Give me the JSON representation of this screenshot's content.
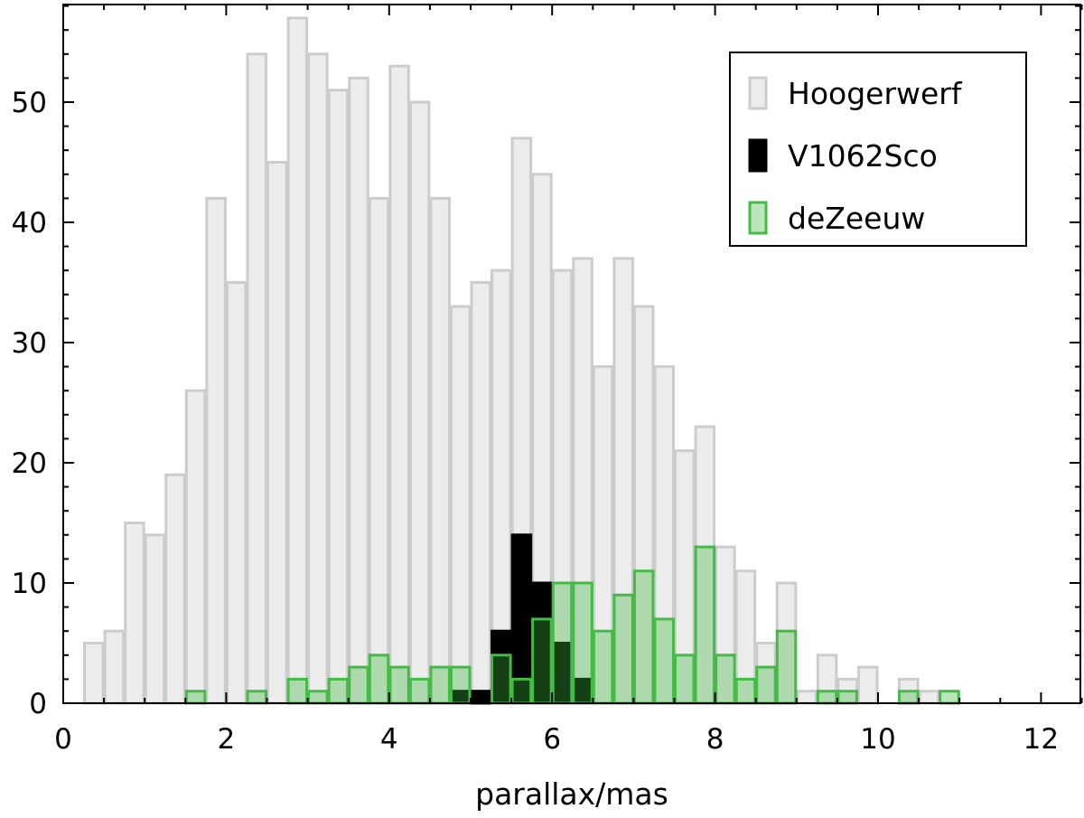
{
  "chart_data": {
    "type": "bar",
    "title": "",
    "xlabel": "parallax/mas",
    "ylabel": "",
    "xlim": [
      0,
      12.5
    ],
    "ylim": [
      0,
      58
    ],
    "bin_width": 0.25,
    "xticks": [
      0,
      2,
      4,
      6,
      8,
      10,
      12
    ],
    "yticks": [
      0,
      10,
      20,
      30,
      40,
      50
    ],
    "grid": false,
    "legend_position": "top-right",
    "series": [
      {
        "name": "Hoogerwerf",
        "fill": "#ececec",
        "stroke": "#cccccc",
        "bins": [
          [
            0.25,
            5
          ],
          [
            0.5,
            6
          ],
          [
            0.75,
            15
          ],
          [
            1.0,
            14
          ],
          [
            1.25,
            19
          ],
          [
            1.5,
            26
          ],
          [
            1.75,
            42
          ],
          [
            2.0,
            35
          ],
          [
            2.25,
            54
          ],
          [
            2.5,
            45
          ],
          [
            2.75,
            57
          ],
          [
            3.0,
            54
          ],
          [
            3.25,
            51
          ],
          [
            3.5,
            52
          ],
          [
            3.75,
            42
          ],
          [
            4.0,
            53
          ],
          [
            4.25,
            50
          ],
          [
            4.5,
            42
          ],
          [
            4.75,
            33
          ],
          [
            5.0,
            35
          ],
          [
            5.25,
            36
          ],
          [
            5.5,
            47
          ],
          [
            5.75,
            44
          ],
          [
            6.0,
            36
          ],
          [
            6.25,
            37
          ],
          [
            6.5,
            28
          ],
          [
            6.75,
            37
          ],
          [
            7.0,
            33
          ],
          [
            7.25,
            28
          ],
          [
            7.5,
            21
          ],
          [
            7.75,
            23
          ],
          [
            8.0,
            13
          ],
          [
            8.25,
            11
          ],
          [
            8.5,
            5
          ],
          [
            8.75,
            10
          ],
          [
            9.0,
            1
          ],
          [
            9.25,
            4
          ],
          [
            9.5,
            2
          ],
          [
            9.75,
            3
          ],
          [
            10.0,
            0
          ],
          [
            10.25,
            2
          ],
          [
            10.5,
            1
          ]
        ]
      },
      {
        "name": "V1062Sco",
        "fill": "#000000",
        "stroke": "#000000",
        "bins": [
          [
            4.75,
            1
          ],
          [
            5.0,
            1
          ],
          [
            5.25,
            6
          ],
          [
            5.5,
            14
          ],
          [
            5.75,
            10
          ],
          [
            6.0,
            5
          ],
          [
            6.25,
            2
          ]
        ]
      },
      {
        "name": "deZeeuw",
        "fill": "rgba(60,180,60,0.35)",
        "stroke": "#44bb44",
        "bins": [
          [
            1.5,
            1
          ],
          [
            2.25,
            1
          ],
          [
            2.75,
            2
          ],
          [
            3.0,
            1
          ],
          [
            3.25,
            2
          ],
          [
            3.5,
            3
          ],
          [
            3.75,
            4
          ],
          [
            4.0,
            3
          ],
          [
            4.25,
            2
          ],
          [
            4.5,
            3
          ],
          [
            4.75,
            3
          ],
          [
            5.25,
            4
          ],
          [
            5.5,
            2
          ],
          [
            5.75,
            7
          ],
          [
            6.0,
            10
          ],
          [
            6.25,
            10
          ],
          [
            6.5,
            6
          ],
          [
            6.75,
            9
          ],
          [
            7.0,
            11
          ],
          [
            7.25,
            7
          ],
          [
            7.5,
            4
          ],
          [
            7.75,
            13
          ],
          [
            8.0,
            4
          ],
          [
            8.25,
            2
          ],
          [
            8.5,
            3
          ],
          [
            8.75,
            6
          ],
          [
            9.25,
            1
          ],
          [
            9.5,
            1
          ],
          [
            10.25,
            1
          ],
          [
            10.75,
            1
          ]
        ]
      }
    ]
  }
}
